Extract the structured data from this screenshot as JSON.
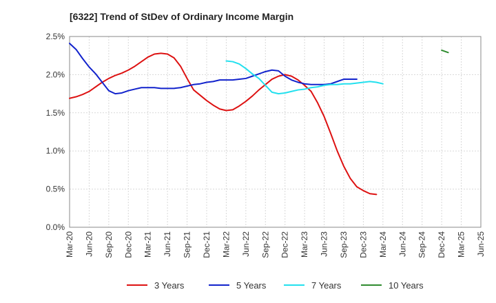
{
  "chart_data": {
    "type": "line",
    "title": "[6322]  Trend of StDev of Ordinary Income Margin",
    "xlabel": "",
    "ylabel": "",
    "ylim": [
      0,
      0.025
    ],
    "y_ticks": [
      {
        "value": 0.0,
        "label": "0.0%"
      },
      {
        "value": 0.005,
        "label": "0.5%"
      },
      {
        "value": 0.01,
        "label": "1.0%"
      },
      {
        "value": 0.015,
        "label": "1.5%"
      },
      {
        "value": 0.02,
        "label": "2.0%"
      },
      {
        "value": 0.025,
        "label": "2.5%"
      }
    ],
    "x_ticks": [
      "Mar-20",
      "Jun-20",
      "Sep-20",
      "Dec-20",
      "Mar-21",
      "Jun-21",
      "Sep-21",
      "Dec-21",
      "Mar-22",
      "Jun-22",
      "Sep-22",
      "Dec-22",
      "Mar-23",
      "Jun-23",
      "Sep-23",
      "Dec-23",
      "Mar-24",
      "Jun-24",
      "Sep-24",
      "Dec-24",
      "Mar-25",
      "Jun-25"
    ],
    "grid": true,
    "legend_position": "bottom",
    "series": [
      {
        "name": "3 Years",
        "color": "#dd1111",
        "start": "Mar-20",
        "values": [
          0.0169,
          0.0171,
          0.0174,
          0.0178,
          0.0184,
          0.019,
          0.0195,
          0.0199,
          0.0202,
          0.0206,
          0.0211,
          0.0217,
          0.0223,
          0.0227,
          0.0228,
          0.0227,
          0.0222,
          0.0211,
          0.0195,
          0.018,
          0.0173,
          0.0166,
          0.016,
          0.0155,
          0.0153,
          0.0154,
          0.0159,
          0.0165,
          0.0172,
          0.018,
          0.0187,
          0.0194,
          0.0198,
          0.02,
          0.0198,
          0.0193,
          0.0186,
          0.0178,
          0.0163,
          0.0145,
          0.0123,
          0.01,
          0.008,
          0.0064,
          0.0053,
          0.0048,
          0.0044,
          0.0043
        ]
      },
      {
        "name": "5 Years",
        "color": "#1122cc",
        "start": "Mar-20",
        "values": [
          0.0241,
          0.0233,
          0.0221,
          0.021,
          0.0201,
          0.019,
          0.0179,
          0.0175,
          0.0176,
          0.0179,
          0.0181,
          0.0183,
          0.0183,
          0.0183,
          0.0182,
          0.0182,
          0.0182,
          0.0183,
          0.0185,
          0.0187,
          0.0188,
          0.019,
          0.0191,
          0.0193,
          0.0193,
          0.0193,
          0.0194,
          0.0195,
          0.0198,
          0.0201,
          0.0204,
          0.0206,
          0.0205,
          0.0198,
          0.0193,
          0.019,
          0.0188,
          0.0187,
          0.0187,
          0.0187,
          0.0188,
          0.0191,
          0.0194,
          0.0194,
          0.0194
        ]
      },
      {
        "name": "7 Years",
        "color": "#22e0ee",
        "start": "Mar-22",
        "values": [
          0.0218,
          0.0217,
          0.0214,
          0.0208,
          0.0201,
          0.0195,
          0.0186,
          0.0177,
          0.0175,
          0.0176,
          0.0178,
          0.018,
          0.0181,
          0.0183,
          0.0184,
          0.0186,
          0.0187,
          0.0187,
          0.0188,
          0.0188,
          0.0189,
          0.019,
          0.0191,
          0.019,
          0.0188
        ]
      },
      {
        "name": "10 Years",
        "color": "#2e8b2e",
        "start": "Dec-24",
        "values": [
          0.0232,
          0.0229
        ]
      }
    ]
  }
}
